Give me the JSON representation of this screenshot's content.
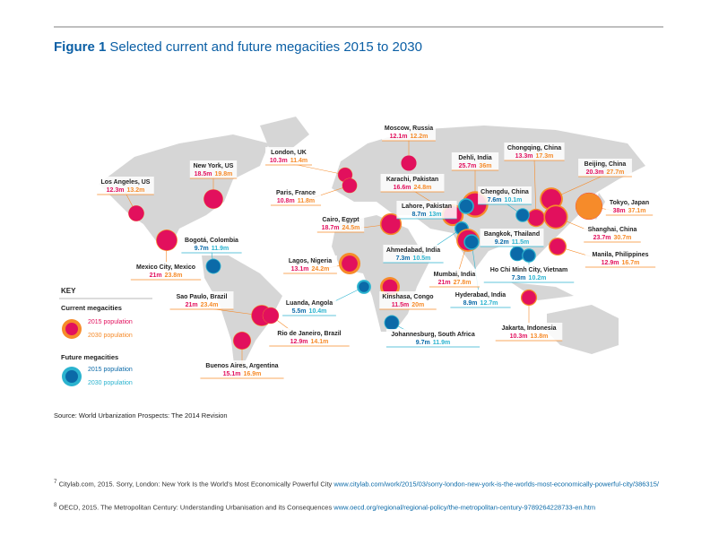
{
  "header": {
    "figure": "Figure 1",
    "title": "Selected current and future megacities 2015 to 2030"
  },
  "colors": {
    "current_2015": "#e2105d",
    "current_2030": "#f68b2a",
    "future_2015": "#0b6aa8",
    "future_2030": "#2bb3cf"
  },
  "cities": [
    {
      "name": "Los Angeles, US",
      "group": "current",
      "pop2015": {
        "value": 12.3,
        "label": "12.3m"
      },
      "pop2030": {
        "value": 13.2,
        "label": "13.2m"
      }
    },
    {
      "name": "New York, US",
      "group": "current",
      "pop2015": {
        "value": 18.5,
        "label": "18.5m"
      },
      "pop2030": {
        "value": 19.8,
        "label": "19.8m"
      }
    },
    {
      "name": "London, UK",
      "group": "current",
      "pop2015": {
        "value": 10.3,
        "label": "10.3m"
      },
      "pop2030": {
        "value": 11.4,
        "label": "11.4m"
      }
    },
    {
      "name": "Paris, France",
      "group": "current",
      "pop2015": {
        "value": 10.8,
        "label": "10.8m"
      },
      "pop2030": {
        "value": 11.8,
        "label": "11.8m"
      }
    },
    {
      "name": "Moscow, Russia",
      "group": "current",
      "pop2015": {
        "value": 12.1,
        "label": "12.1m"
      },
      "pop2030": {
        "value": 12.2,
        "label": "12.2m"
      }
    },
    {
      "name": "Dehli, India",
      "group": "current",
      "pop2015": {
        "value": 25.7,
        "label": "25.7m"
      },
      "pop2030": {
        "value": 36,
        "label": "36m"
      }
    },
    {
      "name": "Chongqing, China",
      "group": "current",
      "pop2015": {
        "value": 13.3,
        "label": "13.3m"
      },
      "pop2030": {
        "value": 17.3,
        "label": "17.3m"
      }
    },
    {
      "name": "Beijing, China",
      "group": "current",
      "pop2015": {
        "value": 20.3,
        "label": "20.3m"
      },
      "pop2030": {
        "value": 27.7,
        "label": "27.7m"
      }
    },
    {
      "name": "Karachi, Pakistan",
      "group": "current",
      "pop2015": {
        "value": 16.6,
        "label": "16.6m"
      },
      "pop2030": {
        "value": 24.8,
        "label": "24.8m"
      }
    },
    {
      "name": "Chengdu, China",
      "group": "future",
      "pop2015": {
        "value": 7.6,
        "label": "7.6m"
      },
      "pop2030": {
        "value": 10.1,
        "label": "10.1m"
      }
    },
    {
      "name": "Lahore, Pakistan",
      "group": "future",
      "pop2015": {
        "value": 8.7,
        "label": "8.7m"
      },
      "pop2030": {
        "value": 13,
        "label": "13m"
      }
    },
    {
      "name": "Tokyo, Japan",
      "group": "current",
      "pop2015": {
        "value": 38,
        "label": "38m"
      },
      "pop2030": {
        "value": 37.1,
        "label": "37.1m"
      }
    },
    {
      "name": "Cairo, Egypt",
      "group": "current",
      "pop2015": {
        "value": 18.7,
        "label": "18.7m"
      },
      "pop2030": {
        "value": 24.5,
        "label": "24.5m"
      }
    },
    {
      "name": "Bogotá, Colombia",
      "group": "future",
      "pop2015": {
        "value": 9.7,
        "label": "9.7m"
      },
      "pop2030": {
        "value": 11.9,
        "label": "11.9m"
      }
    },
    {
      "name": "Shanghai, China",
      "group": "current",
      "pop2015": {
        "value": 23.7,
        "label": "23.7m"
      },
      "pop2030": {
        "value": 30.7,
        "label": "30.7m"
      }
    },
    {
      "name": "Bangkok, Thailand",
      "group": "future",
      "pop2015": {
        "value": 9.2,
        "label": "9.2m"
      },
      "pop2030": {
        "value": 11.5,
        "label": "11.5m"
      }
    },
    {
      "name": "Ahmedabad, India",
      "group": "future",
      "pop2015": {
        "value": 7.3,
        "label": "7.3m"
      },
      "pop2030": {
        "value": 10.5,
        "label": "10.5m"
      }
    },
    {
      "name": "Mexico City, Mexico",
      "group": "current",
      "pop2015": {
        "value": 21,
        "label": "21m"
      },
      "pop2030": {
        "value": 23.8,
        "label": "23.8m"
      }
    },
    {
      "name": "Lagos, Nigeria",
      "group": "current",
      "pop2015": {
        "value": 13.1,
        "label": "13.1m"
      },
      "pop2030": {
        "value": 24.2,
        "label": "24.2m"
      }
    },
    {
      "name": "Manila, Philippines",
      "group": "current",
      "pop2015": {
        "value": 12.9,
        "label": "12.9m"
      },
      "pop2030": {
        "value": 16.7,
        "label": "16.7m"
      }
    },
    {
      "name": "Mumbai, India",
      "group": "current",
      "pop2015": {
        "value": 21,
        "label": "21m"
      },
      "pop2030": {
        "value": 27.8,
        "label": "27.8m"
      }
    },
    {
      "name": "Ho Chi Minh City, Vietnam",
      "group": "future",
      "pop2015": {
        "value": 7.3,
        "label": "7.3m"
      },
      "pop2030": {
        "value": 10.2,
        "label": "10.2m"
      }
    },
    {
      "name": "Kinshasa, Congo",
      "group": "current",
      "pop2015": {
        "value": 11.5,
        "label": "11.5m"
      },
      "pop2030": {
        "value": 20,
        "label": "20m"
      }
    },
    {
      "name": "Luanda, Angola",
      "group": "future",
      "pop2015": {
        "value": 5.5,
        "label": "5.5m"
      },
      "pop2030": {
        "value": 10.4,
        "label": "10.4m"
      }
    },
    {
      "name": "Hyderabad, India",
      "group": "future",
      "pop2015": {
        "value": 8.9,
        "label": "8.9m"
      },
      "pop2030": {
        "value": 12.7,
        "label": "12.7m"
      }
    },
    {
      "name": "Sao Paulo, Brazil",
      "group": "current",
      "pop2015": {
        "value": 21,
        "label": "21m"
      },
      "pop2030": {
        "value": 23.4,
        "label": "23.4m"
      }
    },
    {
      "name": "Rio de Janeiro, Brazil",
      "group": "current",
      "pop2015": {
        "value": 12.9,
        "label": "12.9m"
      },
      "pop2030": {
        "value": 14.1,
        "label": "14.1m"
      }
    },
    {
      "name": "Jakarta, Indonesia",
      "group": "current",
      "pop2015": {
        "value": 10.3,
        "label": "10.3m"
      },
      "pop2030": {
        "value": 13.8,
        "label": "13.8m"
      }
    },
    {
      "name": "Johannesburg, South Africa",
      "group": "future",
      "pop2015": {
        "value": 9.7,
        "label": "9.7m"
      },
      "pop2030": {
        "value": 11.9,
        "label": "11.9m"
      }
    },
    {
      "name": "Buenos Aires, Argentina",
      "group": "current",
      "pop2015": {
        "value": 15.1,
        "label": "15.1m"
      },
      "pop2030": {
        "value": 16.9,
        "label": "16.9m"
      }
    }
  ],
  "key": {
    "title": "KEY",
    "current": {
      "heading": "Current megacities",
      "y2015": "2015 population",
      "y2030": "2030 population"
    },
    "future": {
      "heading": "Future megacities",
      "y2015": "2015 population",
      "y2030": "2030 population"
    }
  },
  "source": "Source: World Urbanization Prospects: The 2014 Revision",
  "footnotes": [
    {
      "number": "7",
      "text": "Citylab.com, 2015. Sorry, London: New York Is the World’s Most Economically Powerful City",
      "link": "www.citylab.com/work/2015/03/sorry-london-new-york-is-the-worlds-most-economically-powerful-city/386315/"
    },
    {
      "number": "8",
      "text": "OECD, 2015. The Metropolitan Century: Understanding Urbanisation and its Consequences",
      "link": "www.oecd.org/regional/regional-policy/the-metropolitan-century-9789264228733-en.htm"
    }
  ]
}
